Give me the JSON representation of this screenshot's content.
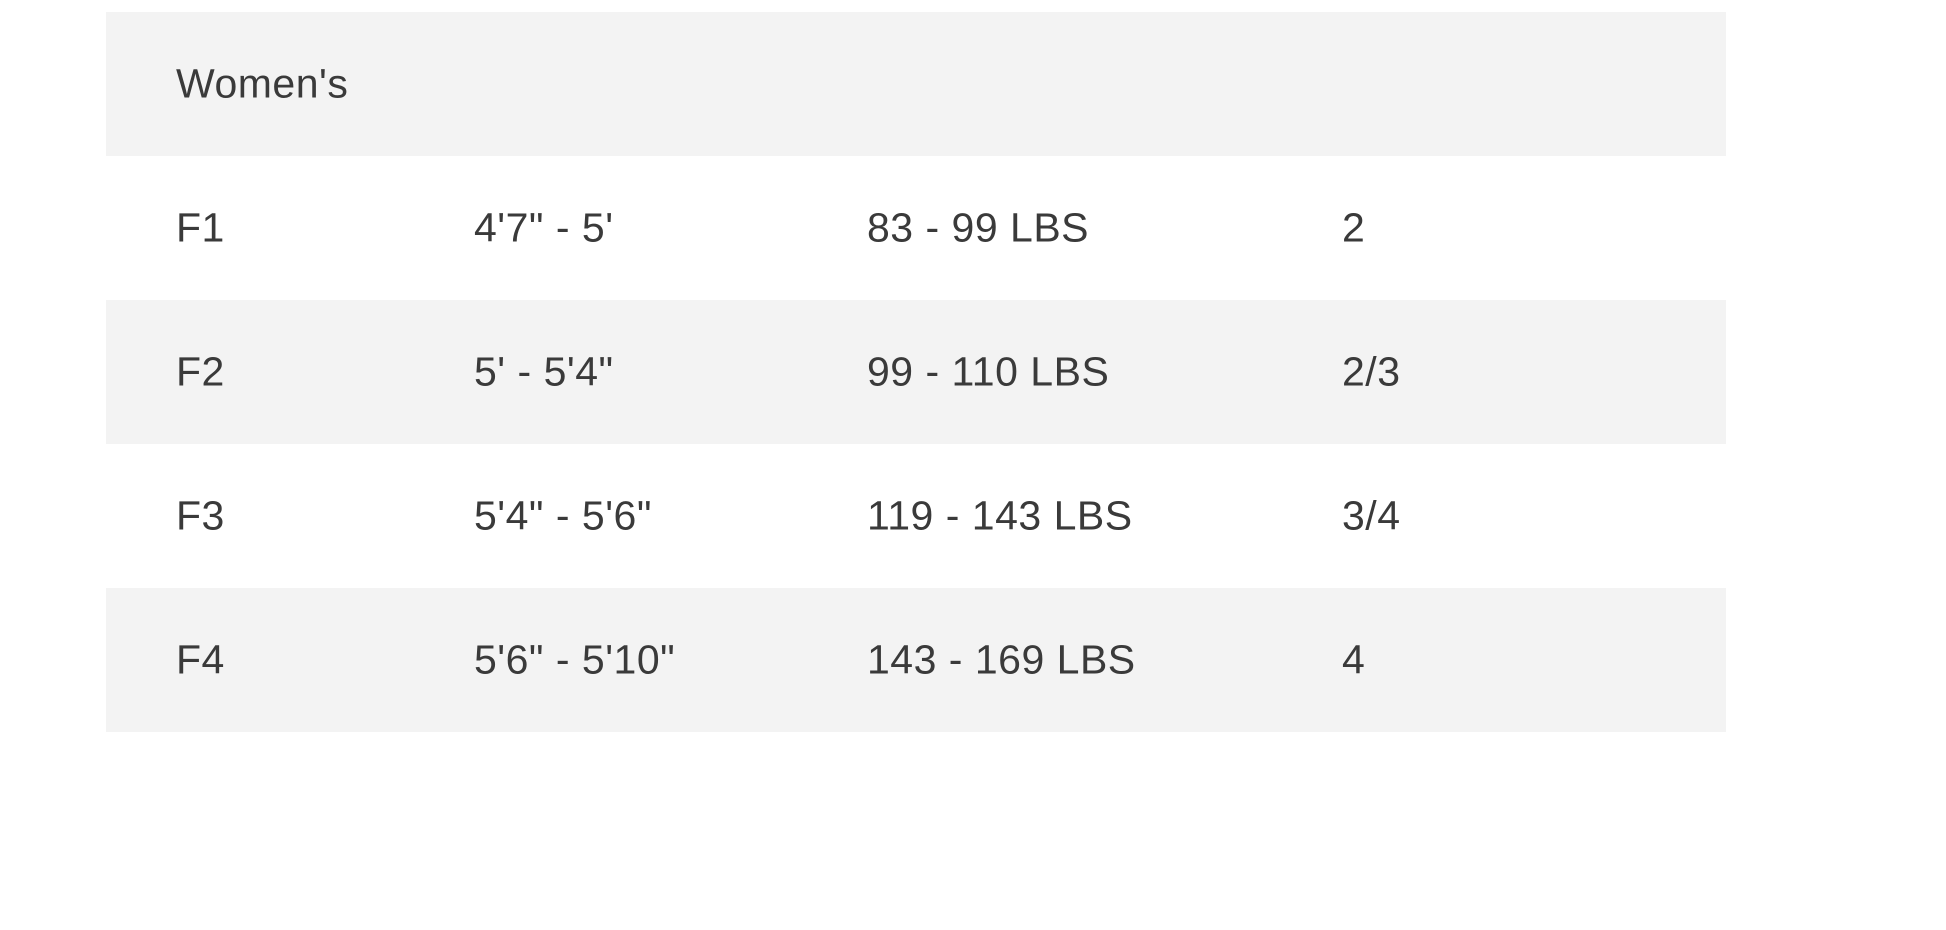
{
  "table": {
    "section_title": "Women's",
    "rows": [
      [
        "F1",
        "4'7\" - 5'",
        "83 - 99 LBS",
        "2"
      ],
      [
        "F2",
        "5' - 5'4\"",
        "99 - 110 LBS",
        "2/3"
      ],
      [
        "F3",
        "5'4\" - 5'6\"",
        "119 - 143 LBS",
        "3/4"
      ],
      [
        "F4",
        "5'6\" - 5'10\"",
        "143 - 169 LBS",
        "4"
      ]
    ]
  },
  "colors": {
    "row_shade": "#f3f3f3",
    "text": "#3a3a3a"
  }
}
